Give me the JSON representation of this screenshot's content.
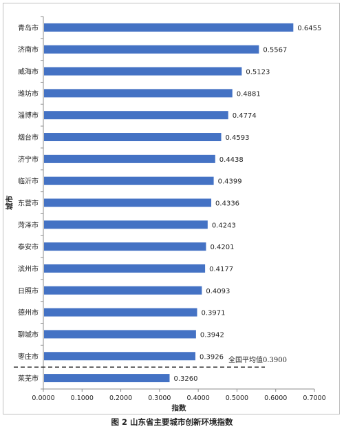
{
  "chart_data": {
    "type": "bar",
    "orientation": "horizontal",
    "categories": [
      "青岛市",
      "济南市",
      "威海市",
      "潍坊市",
      "淄博市",
      "烟台市",
      "济宁市",
      "临沂市",
      "东营市",
      "菏泽市",
      "泰安市",
      "滨州市",
      "日照市",
      "德州市",
      "聊城市",
      "枣庄市",
      "莱芜市"
    ],
    "values": [
      0.6455,
      0.5567,
      0.5123,
      0.4881,
      0.4774,
      0.4593,
      0.4438,
      0.4399,
      0.4336,
      0.4243,
      0.4201,
      0.4177,
      0.4093,
      0.3971,
      0.3942,
      0.3926,
      0.326
    ],
    "value_labels": [
      "0.6455",
      "0.5567",
      "0.5123",
      "0.4881",
      "0.4774",
      "0.4593",
      "0.4438",
      "0.4399",
      "0.4336",
      "0.4243",
      "0.4201",
      "0.4177",
      "0.4093",
      "0.3971",
      "0.3942",
      "0.3926",
      "0.3260"
    ],
    "xlim": [
      0,
      0.7
    ],
    "xticks": [
      "0.0000",
      "0.1000",
      "0.2000",
      "0.3000",
      "0.4000",
      "0.5000",
      "0.6000",
      "0.7000"
    ],
    "xlabel": "指数",
    "ylabel": "城市",
    "reference_line": {
      "label": "全国平均值0.3900",
      "after_category": "枣庄市"
    },
    "bar_color": "#4472c4",
    "grid": false,
    "caption": "图 2 山东省主要城市创新环境指数"
  }
}
